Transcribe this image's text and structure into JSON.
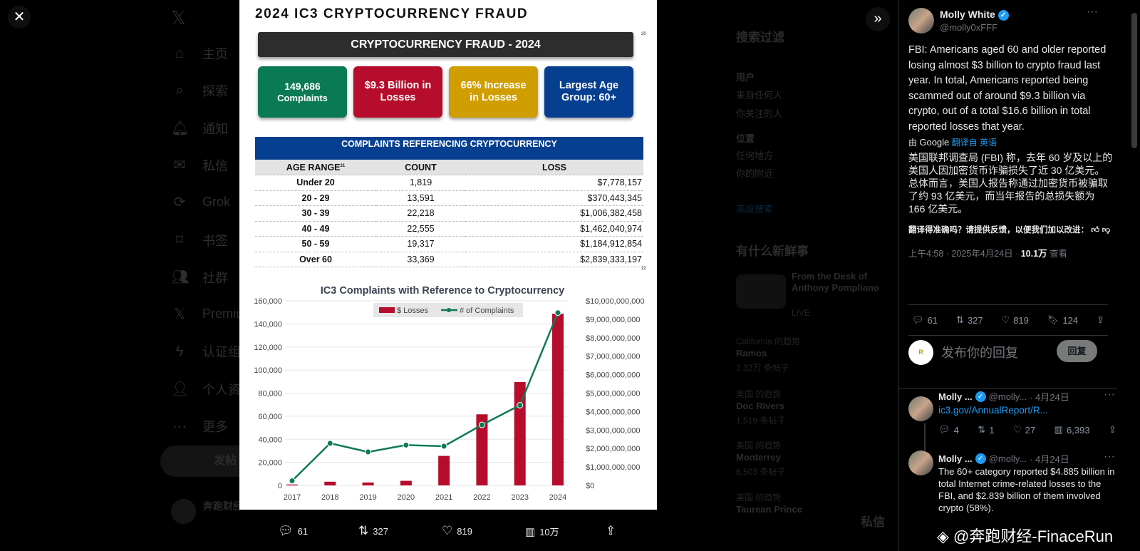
{
  "background_sidebar": {
    "items": [
      {
        "label": "主页",
        "icon": "home-icon"
      },
      {
        "label": "探索",
        "icon": "search-icon"
      },
      {
        "label": "通知",
        "icon": "bell-icon"
      },
      {
        "label": "私信",
        "icon": "mail-icon"
      },
      {
        "label": "Grok",
        "icon": "grok-icon"
      },
      {
        "label": "书签",
        "icon": "bookmark-icon"
      },
      {
        "label": "社群",
        "icon": "communities-icon"
      },
      {
        "label": "Premium",
        "icon": "x-icon"
      },
      {
        "label": "认证组织",
        "icon": "lightning-icon"
      },
      {
        "label": "个人资料",
        "icon": "person-icon"
      },
      {
        "label": "更多",
        "icon": "more-icon"
      }
    ],
    "post_button": "发帖",
    "account_name": "奔跑财经"
  },
  "background_right": {
    "search_filter_title": "搜索过滤",
    "user_label": "用户",
    "user_options": [
      "来自任何人",
      "你关注的人"
    ],
    "location_label": "位置",
    "location_options": [
      "任何地方",
      "你的附近"
    ],
    "advanced_search": "高级搜索",
    "whats_new_title": "有什么新鲜事",
    "live_title": "From the Desk of Anthony Pompliano",
    "live_badge": "LIVE",
    "trends": [
      {
        "context": "California 的趋势",
        "name": "Ramos",
        "count": "2.32万 条帖子"
      },
      {
        "context": "美国 的趋势",
        "name": "Doc Rivers",
        "count": "1,519 条帖子"
      },
      {
        "context": "美国 的趋势",
        "name": "Monterrey",
        "count": "6,503 条帖子"
      },
      {
        "context": "美国 的趋势",
        "name": "Taurean Prince",
        "count": ""
      }
    ],
    "messages_label": "私信"
  },
  "infographic": {
    "title": "2024 IC3 CRYPTOCURRENCY FRAUD",
    "banner": "CRYPTOCURRENCY FRAUD - 2024",
    "footnote_top": "20",
    "footnote_table": "22",
    "tiles": [
      {
        "line1": "149,686",
        "line2": "Complaints",
        "color": "#0a7a55"
      },
      {
        "line1": "$9.3 Billion in",
        "line2": "Losses",
        "color": "#b50d2b"
      },
      {
        "line1": "66% Increase",
        "line2": "in Losses",
        "color": "#d19e00"
      },
      {
        "line1": "Largest Age",
        "line2": "Group: 60+",
        "color": "#063f8f"
      }
    ],
    "table": {
      "title": "COMPLAINTS REFERENCING CRYPTOCURRENCY",
      "headers": [
        "AGE RANGE",
        "COUNT",
        "LOSS"
      ],
      "header_sup": "21",
      "rows": [
        [
          "Under 20",
          "1,819",
          "$7,778,157"
        ],
        [
          "20 - 29",
          "13,591",
          "$370,443,345"
        ],
        [
          "30 - 39",
          "22,218",
          "$1,006,382,458"
        ],
        [
          "40 - 49",
          "22,555",
          "$1,462,040,974"
        ],
        [
          "50 - 59",
          "19,317",
          "$1,184,912,854"
        ],
        [
          "Over 60",
          "33,369",
          "$2,839,333,197"
        ]
      ]
    }
  },
  "chart_data": {
    "type": "bar+line",
    "title": "IC3 Complaints with Reference to Cryptocurrency",
    "categories": [
      "2017",
      "2018",
      "2019",
      "2020",
      "2021",
      "2022",
      "2023",
      "2024"
    ],
    "series": [
      {
        "name": "$ Losses",
        "type": "bar",
        "axis": "right",
        "color": "#b50d2b",
        "values": [
          50000000,
          200000000,
          160000000,
          250000000,
          1600000000,
          3850000000,
          5600000000,
          9300000000
        ]
      },
      {
        "name": "# of Complaints",
        "type": "line",
        "axis": "left",
        "color": "#0e7a55",
        "values": [
          4000,
          36500,
          29000,
          35000,
          34000,
          52500,
          69500,
          149686
        ]
      }
    ],
    "y_left": {
      "ylim": [
        0,
        160000
      ],
      "ticks": [
        "0",
        "20,000",
        "40,000",
        "60,000",
        "80,000",
        "100,000",
        "120,000",
        "140,000",
        "160,000"
      ]
    },
    "y_right": {
      "ylim": [
        0,
        10000000000
      ],
      "ticks": [
        "$0",
        "$1,000,000,000",
        "$2,000,000,000",
        "$3,000,000,000",
        "$4,000,000,000",
        "$5,000,000,000",
        "$6,000,000,000",
        "$7,000,000,000",
        "$8,000,000,000",
        "$9,000,000,000",
        "$10,000,000,000"
      ]
    },
    "grid": true,
    "legend": "top-center"
  },
  "viewer_actions": {
    "replies": "61",
    "reposts": "327",
    "likes": "819",
    "views": "10万"
  },
  "tweet": {
    "name": "Molly White",
    "handle": "@molly0xFFF",
    "text": "FBI: Americans aged 60 and older reported losing almost $3 billion to crypto fraud last year. In total, Americans reported being scammed out of around $9.3 billion via crypto, out of a total $16.6 billion in total reported losses that year.",
    "translated_by": "由",
    "google": "Google",
    "translated_from": "翻译自 英语",
    "translation": "美国联邦调查局 (FBI) 称，去年 60 岁及以上的美国人因加密货币诈骗损失了近 30 亿美元。总体而言，美国人报告称通过加密货币被骗取了约 93 亿美元，而当年报告的总损失额为 166 亿美元。",
    "feedback": "翻译得准确吗？请提供反馈，以便我们加以改进：",
    "time": "上午4:58 · 2025年4月24日 · ",
    "views": "10.1万",
    "views_label": " 查看",
    "stats": {
      "replies": "61",
      "reposts": "327",
      "likes": "819",
      "bookmarks": "124"
    }
  },
  "reply_box": {
    "placeholder": "发布你的回复",
    "button": "回复"
  },
  "replies": [
    {
      "name": "Molly ...",
      "handle": "@molly...",
      "date": "· 4月24日",
      "link": "ic3.gov/AnnualReport/R...",
      "stats": {
        "replies": "4",
        "reposts": "1",
        "likes": "27",
        "views": "6,393"
      }
    },
    {
      "name": "Molly ...",
      "handle": "@molly...",
      "date": "· 4月24日",
      "text": "The 60+ category reported $4.885 billion in total Internet crime-related losses to the FBI, and $2.839 billion of them involved crypto (58%)."
    }
  ],
  "watermark": "@奔跑财经-FinaceRun"
}
